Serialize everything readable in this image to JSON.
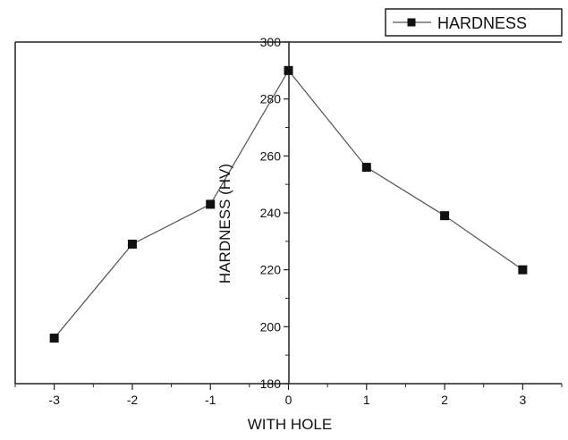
{
  "chart_data": {
    "type": "line",
    "title": "",
    "xlabel": "WITH HOLE",
    "ylabel": "HARDNESS (HV)",
    "xlim": [
      -3.5,
      3.5
    ],
    "ylim": [
      180,
      300
    ],
    "x_ticks": [
      "-3",
      "-2",
      "-1",
      "0",
      "1",
      "2",
      "3"
    ],
    "y_ticks": [
      "180",
      "200",
      "220",
      "240",
      "260",
      "280",
      "300"
    ],
    "series": [
      {
        "name": "HARDNESS",
        "x": [
          -3,
          -2,
          -1,
          0,
          1,
          2,
          3
        ],
        "values": [
          196,
          229,
          243,
          290,
          256,
          239,
          220
        ],
        "color": "#555555",
        "marker": "square",
        "marker_color": "#111111"
      }
    ],
    "legend": {
      "position": "top-right",
      "entries": [
        "HARDNESS"
      ]
    },
    "grid": false
  }
}
